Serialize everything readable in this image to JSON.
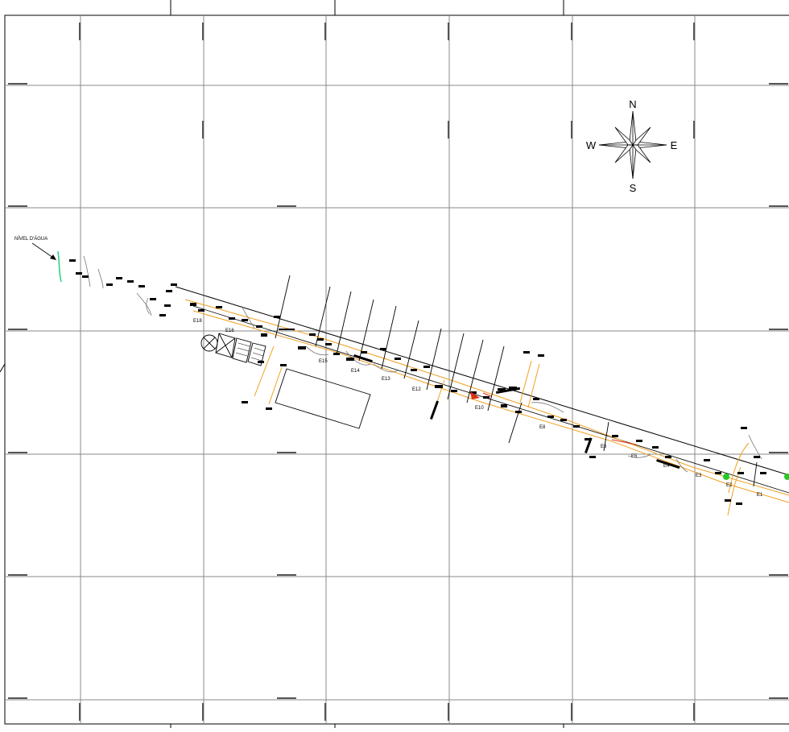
{
  "drawing": {
    "water_label": "NÍVEL D'ÁGUA",
    "compass": {
      "north": "N",
      "south": "S",
      "east": "E",
      "west": "W"
    },
    "stations": [
      "E18",
      "E16",
      "E15",
      "E14",
      "E13",
      "E12",
      "E10",
      "E8",
      "E6",
      "E5",
      "E4",
      "E3",
      "E2",
      "E1"
    ],
    "colors": {
      "grid": "#808080",
      "frame": "#000000",
      "road_edge": "#f0a020",
      "water_line": "#20d080",
      "marker_green": "#22cc22",
      "marker_red": "#e03010"
    }
  }
}
